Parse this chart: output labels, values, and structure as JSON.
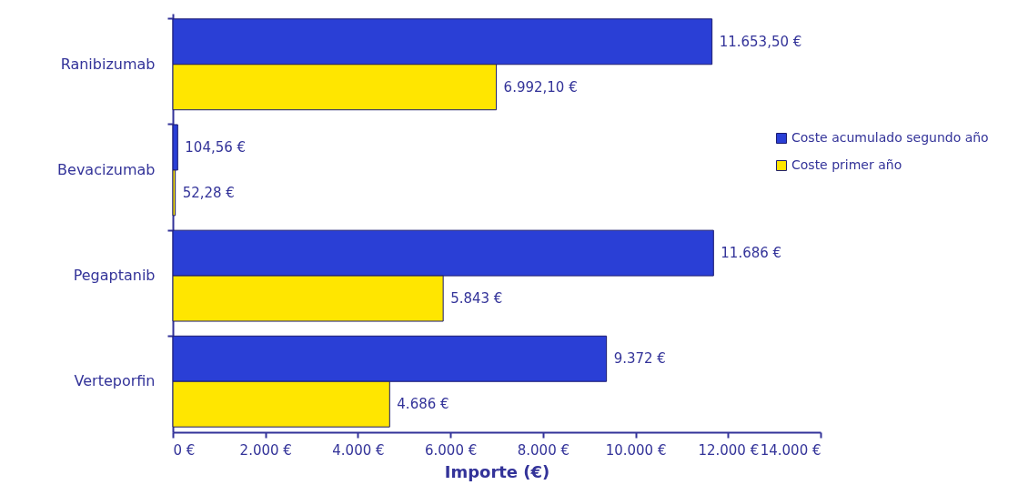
{
  "chart_data": {
    "type": "bar",
    "orientation": "horizontal",
    "xlabel": "Importe (€)",
    "categories": [
      "Ranibizumab",
      "Bevacizumab",
      "Pegaptanib",
      "Verteporfin"
    ],
    "series": [
      {
        "name": "Coste acumulado segundo año",
        "color": "#2a3fd6",
        "values": [
          11653.5,
          104.56,
          11686,
          9372
        ],
        "value_labels": [
          "11.653,50 €",
          "104,56 €",
          "11.686 €",
          "9.372 €"
        ]
      },
      {
        "name": "Coste primer año",
        "color": "#ffe600",
        "values": [
          6992.1,
          52.28,
          5843,
          4686
        ],
        "value_labels": [
          "6.992,10 €",
          "52,28 €",
          "5.843 €",
          "4.686 €"
        ]
      }
    ],
    "xlim": [
      0,
      14000
    ],
    "xticks": [
      {
        "value": 0,
        "label": "0 €"
      },
      {
        "value": 2000,
        "label": "2.000 €"
      },
      {
        "value": 4000,
        "label": "4.000 €"
      },
      {
        "value": 6000,
        "label": "6.000 €"
      },
      {
        "value": 8000,
        "label": "8.000 €"
      },
      {
        "value": 10000,
        "label": "10.000 €"
      },
      {
        "value": 12000,
        "label": "12.000 €"
      },
      {
        "value": 14000,
        "label": "14.000 €"
      }
    ],
    "grid": false,
    "legend": "right"
  }
}
